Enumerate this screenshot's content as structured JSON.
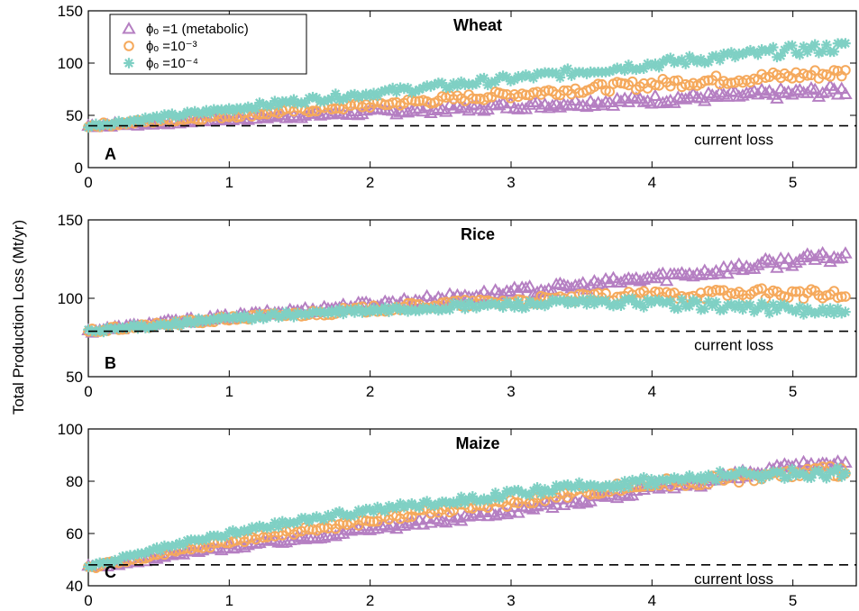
{
  "ylabel": "Total Production Loss (Mt/yr)",
  "legend": [
    {
      "label": "ϕₒ =1 (metabolic)",
      "color": "#b57fc2",
      "marker": "triangle"
    },
    {
      "label": "ϕₒ =10⁻³",
      "color": "#f5a95c",
      "marker": "circle"
    },
    {
      "label": "ϕₒ =10⁻⁴",
      "color": "#7fd0c4",
      "marker": "star"
    }
  ],
  "chart_data": [
    {
      "type": "scatter",
      "title": "Wheat",
      "panel_label": "A",
      "xlim": [
        0,
        5.45
      ],
      "ylim": [
        0,
        150
      ],
      "xticks": [
        0,
        1,
        2,
        3,
        4,
        5
      ],
      "yticks": [
        0,
        50,
        100,
        150
      ],
      "reference_line": {
        "y": 40,
        "label": "current loss"
      },
      "series": [
        {
          "name": "ϕₒ =1 (metabolic)",
          "x": [
            0,
            0.5,
            1,
            1.5,
            2,
            2.5,
            3,
            3.5,
            4,
            4.5,
            5,
            5.4
          ],
          "y": [
            40,
            43,
            47,
            50,
            53,
            56,
            59,
            62,
            65,
            68,
            71,
            74
          ]
        },
        {
          "name": "ϕₒ =10⁻³",
          "x": [
            0,
            0.5,
            1,
            1.5,
            2,
            2.5,
            3,
            3.5,
            4,
            4.5,
            5,
            5.4
          ],
          "y": [
            40,
            45,
            50,
            55,
            60,
            65,
            70,
            75,
            80,
            84,
            88,
            91
          ]
        },
        {
          "name": "ϕₒ =10⁻⁴",
          "x": [
            0,
            0.5,
            1,
            1.5,
            2,
            2.5,
            3,
            3.5,
            4,
            4.5,
            5,
            5.4
          ],
          "y": [
            40,
            48,
            56,
            64,
            71,
            78,
            85,
            92,
            99,
            106,
            112,
            116
          ]
        }
      ]
    },
    {
      "type": "scatter",
      "title": "Rice",
      "panel_label": "B",
      "xlim": [
        0,
        5.45
      ],
      "ylim": [
        50,
        150
      ],
      "xticks": [
        0,
        1,
        2,
        3,
        4,
        5
      ],
      "yticks": [
        50,
        100,
        150
      ],
      "reference_line": {
        "y": 79,
        "label": "current loss"
      },
      "series": [
        {
          "name": "ϕₒ =1 (metabolic)",
          "x": [
            0,
            0.5,
            1,
            1.5,
            2,
            2.5,
            3,
            3.5,
            4,
            4.5,
            5,
            5.4
          ],
          "y": [
            79,
            84,
            88,
            92,
            96,
            100,
            104,
            108,
            113,
            118,
            124,
            127
          ]
        },
        {
          "name": "ϕₒ =10⁻³",
          "x": [
            0,
            0.5,
            1,
            1.5,
            2,
            2.5,
            3,
            3.5,
            4,
            4.5,
            5,
            5.4
          ],
          "y": [
            79,
            83,
            87,
            90,
            93,
            96,
            98,
            100,
            102,
            103,
            103,
            101
          ]
        },
        {
          "name": "ϕₒ =10⁻⁴",
          "x": [
            0,
            0.5,
            1,
            1.5,
            2,
            2.5,
            3,
            3.5,
            4,
            4.5,
            5,
            5.4
          ],
          "y": [
            79,
            83,
            87,
            90,
            92,
            94,
            96,
            97,
            97,
            95,
            93,
            90
          ]
        }
      ]
    },
    {
      "type": "scatter",
      "title": "Maize",
      "panel_label": "C",
      "xlim": [
        0,
        5.45
      ],
      "ylim": [
        40,
        100
      ],
      "xticks": [
        0,
        1,
        2,
        3,
        4,
        5
      ],
      "yticks": [
        40,
        60,
        80,
        100
      ],
      "reference_line": {
        "y": 48,
        "label": "current loss"
      },
      "series": [
        {
          "name": "ϕₒ =1 (metabolic)",
          "x": [
            0,
            0.5,
            1,
            1.5,
            2,
            2.5,
            3,
            3.5,
            4,
            4.5,
            5,
            5.4
          ],
          "y": [
            47,
            51,
            55,
            58,
            62,
            65,
            69,
            73,
            77,
            81,
            85,
            88
          ]
        },
        {
          "name": "ϕₒ =10⁻³",
          "x": [
            0,
            0.5,
            1,
            1.5,
            2,
            2.5,
            3,
            3.5,
            4,
            4.5,
            5,
            5.4
          ],
          "y": [
            47,
            52,
            57,
            61,
            65,
            69,
            72,
            76,
            79,
            81,
            83,
            84
          ]
        },
        {
          "name": "ϕₒ =10⁻⁴",
          "x": [
            0,
            0.5,
            1,
            1.5,
            2,
            2.5,
            3,
            3.5,
            4,
            4.5,
            5,
            5.4
          ],
          "y": [
            47,
            54,
            60,
            65,
            69,
            72,
            75,
            78,
            80,
            82,
            83,
            83
          ]
        }
      ]
    }
  ]
}
